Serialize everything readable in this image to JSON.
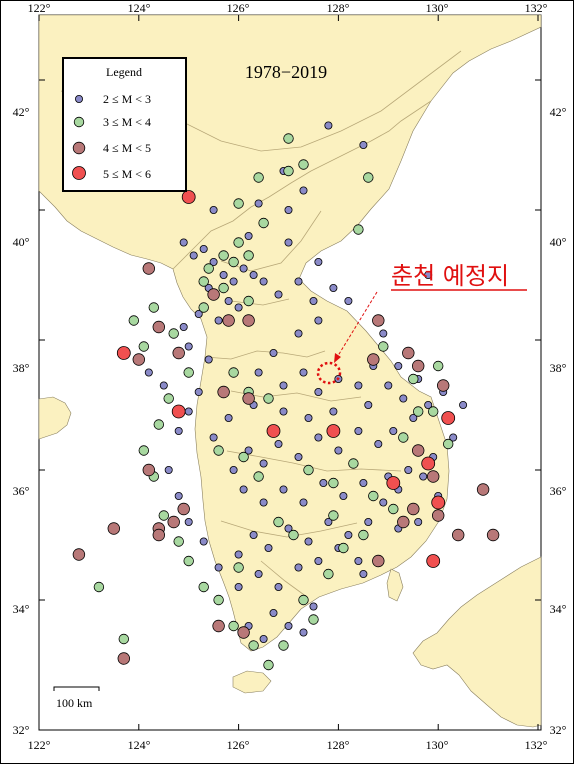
{
  "title": "1978−2019",
  "legend": {
    "title": "Legend",
    "items": [
      {
        "label": "2 ≤ M < 3",
        "color": "#8a8ac8"
      },
      {
        "label": "3 ≤ M < 4",
        "color": "#a8d8a0"
      },
      {
        "label": "4 ≤ M < 5",
        "color": "#b87878"
      },
      {
        "label": "5 ≤ M < 6",
        "color": "#f05050"
      }
    ]
  },
  "annotation": {
    "label": "춘천 예정지",
    "color": "#e01010"
  },
  "scale_bar": {
    "label": "100 km"
  },
  "axes": {
    "lon_ticks": [
      "122°",
      "124°",
      "126°",
      "128°",
      "130°",
      "132°"
    ],
    "lat_ticks": [
      "32°",
      "34°",
      "36°",
      "38°",
      "40°",
      "42°"
    ],
    "lon_range": [
      122,
      132
    ],
    "lat_range": [
      32,
      43
    ]
  },
  "colors": {
    "land": "#fbf1c0",
    "sea": "#ffffff",
    "border": "#b8a878"
  },
  "chart_data": {
    "type": "scatter",
    "title": "1978−2019",
    "xlabel": "",
    "ylabel": "",
    "xlim": [
      122,
      132
    ],
    "ylim": [
      32,
      43
    ],
    "series": [
      {
        "name": "2 ≤ M < 3",
        "color": "#8a8ac8",
        "points": [
          [
            124.9,
            39.5
          ],
          [
            125.1,
            39.3
          ],
          [
            125.3,
            39.4
          ],
          [
            125.5,
            39.2
          ],
          [
            125.7,
            39.0
          ],
          [
            125.9,
            38.9
          ],
          [
            126.1,
            39.1
          ],
          [
            126.3,
            39.0
          ],
          [
            125.4,
            38.8
          ],
          [
            125.8,
            38.6
          ],
          [
            126.0,
            38.5
          ],
          [
            125.6,
            38.3
          ],
          [
            125.2,
            38.4
          ],
          [
            124.9,
            38.2
          ],
          [
            125.0,
            37.9
          ],
          [
            125.4,
            37.7
          ],
          [
            126.5,
            38.9
          ],
          [
            126.8,
            38.7
          ],
          [
            127.2,
            38.9
          ],
          [
            127.5,
            38.6
          ],
          [
            127.9,
            38.8
          ],
          [
            128.2,
            38.6
          ],
          [
            127.6,
            38.3
          ],
          [
            127.2,
            38.1
          ],
          [
            126.7,
            37.8
          ],
          [
            126.4,
            37.5
          ],
          [
            126.9,
            37.3
          ],
          [
            127.3,
            37.5
          ],
          [
            127.6,
            37.2
          ],
          [
            128.0,
            37.4
          ],
          [
            128.4,
            37.3
          ],
          [
            128.7,
            37.6
          ],
          [
            129.0,
            37.3
          ],
          [
            129.3,
            37.1
          ],
          [
            129.6,
            37.4
          ],
          [
            129.8,
            37.0
          ],
          [
            130.1,
            37.2
          ],
          [
            129.5,
            36.8
          ],
          [
            129.1,
            36.6
          ],
          [
            128.8,
            36.4
          ],
          [
            128.4,
            36.6
          ],
          [
            128.0,
            36.3
          ],
          [
            127.6,
            36.5
          ],
          [
            127.2,
            36.2
          ],
          [
            126.8,
            36.4
          ],
          [
            126.5,
            36.1
          ],
          [
            126.2,
            36.3
          ],
          [
            125.9,
            36.0
          ],
          [
            126.1,
            35.7
          ],
          [
            126.5,
            35.5
          ],
          [
            126.9,
            35.7
          ],
          [
            127.3,
            35.5
          ],
          [
            127.7,
            35.8
          ],
          [
            128.1,
            35.6
          ],
          [
            128.5,
            35.8
          ],
          [
            128.9,
            35.5
          ],
          [
            129.2,
            35.7
          ],
          [
            129.5,
            35.4
          ],
          [
            129.7,
            35.9
          ],
          [
            129.9,
            36.2
          ],
          [
            129.4,
            36.0
          ],
          [
            129.0,
            35.9
          ],
          [
            128.6,
            35.2
          ],
          [
            128.2,
            35.0
          ],
          [
            127.8,
            35.2
          ],
          [
            127.4,
            34.9
          ],
          [
            127.0,
            35.1
          ],
          [
            126.6,
            34.8
          ],
          [
            126.3,
            35.0
          ],
          [
            126.0,
            34.7
          ],
          [
            126.4,
            34.4
          ],
          [
            126.8,
            34.2
          ],
          [
            127.2,
            34.5
          ],
          [
            127.6,
            34.6
          ],
          [
            128.0,
            34.8
          ],
          [
            128.4,
            34.6
          ],
          [
            127.0,
            33.6
          ],
          [
            126.5,
            33.4
          ],
          [
            126.2,
            33.6
          ],
          [
            126.7,
            33.8
          ],
          [
            127.3,
            33.5
          ],
          [
            127.5,
            33.9
          ],
          [
            126.0,
            34.2
          ],
          [
            125.6,
            34.5
          ],
          [
            125.3,
            34.9
          ],
          [
            125.0,
            35.2
          ],
          [
            124.8,
            35.6
          ],
          [
            124.6,
            36.0
          ],
          [
            124.8,
            36.6
          ],
          [
            125.0,
            36.9
          ],
          [
            125.2,
            37.2
          ],
          [
            124.5,
            37.3
          ],
          [
            124.2,
            37.5
          ],
          [
            128.5,
            34.4
          ],
          [
            129.2,
            35.1
          ],
          [
            129.6,
            35.2
          ],
          [
            130.0,
            35.6
          ],
          [
            130.3,
            36.5
          ],
          [
            130.5,
            37.0
          ],
          [
            127.0,
            40.0
          ],
          [
            127.3,
            40.3
          ],
          [
            126.9,
            40.6
          ],
          [
            126.4,
            40.1
          ],
          [
            125.5,
            40.0
          ],
          [
            126.2,
            39.6
          ],
          [
            127.0,
            39.5
          ],
          [
            127.6,
            39.2
          ],
          [
            128.5,
            41.0
          ],
          [
            127.8,
            41.3
          ],
          [
            129.8,
            39.0
          ],
          [
            128.9,
            38.1
          ],
          [
            125.8,
            36.8
          ],
          [
            126.9,
            36.9
          ],
          [
            127.9,
            36.9
          ],
          [
            128.6,
            37.0
          ],
          [
            129.2,
            37.6
          ],
          [
            126.3,
            37.0
          ],
          [
            125.5,
            36.5
          ],
          [
            127.4,
            36.8
          ]
        ]
      },
      {
        "name": "3 ≤ M < 4",
        "color": "#a8d8a0",
        "points": [
          [
            126.0,
            39.5
          ],
          [
            125.7,
            39.3
          ],
          [
            125.4,
            39.1
          ],
          [
            126.2,
            39.3
          ],
          [
            125.9,
            39.2
          ],
          [
            125.3,
            38.9
          ],
          [
            126.2,
            38.6
          ],
          [
            125.7,
            38.8
          ],
          [
            127.0,
            41.1
          ],
          [
            127.0,
            40.6
          ],
          [
            127.3,
            40.7
          ],
          [
            126.4,
            40.5
          ],
          [
            128.6,
            40.5
          ],
          [
            128.4,
            39.7
          ],
          [
            128.9,
            37.9
          ],
          [
            125.9,
            37.5
          ],
          [
            126.2,
            37.2
          ],
          [
            126.6,
            37.1
          ],
          [
            125.6,
            36.3
          ],
          [
            126.1,
            36.2
          ],
          [
            127.4,
            36.0
          ],
          [
            127.9,
            35.8
          ],
          [
            128.3,
            36.1
          ],
          [
            129.3,
            36.5
          ],
          [
            129.6,
            36.9
          ],
          [
            130.0,
            37.6
          ],
          [
            129.9,
            36.9
          ],
          [
            129.1,
            35.4
          ],
          [
            128.7,
            35.6
          ],
          [
            128.1,
            34.8
          ],
          [
            127.8,
            34.4
          ],
          [
            127.3,
            34.0
          ],
          [
            126.9,
            33.3
          ],
          [
            126.6,
            33.0
          ],
          [
            126.3,
            33.3
          ],
          [
            125.9,
            33.6
          ],
          [
            125.6,
            34.0
          ],
          [
            125.3,
            34.2
          ],
          [
            125.0,
            34.6
          ],
          [
            124.8,
            34.9
          ],
          [
            124.5,
            35.3
          ],
          [
            124.3,
            35.9
          ],
          [
            124.1,
            36.3
          ],
          [
            124.4,
            36.7
          ],
          [
            124.6,
            37.1
          ],
          [
            124.1,
            37.9
          ],
          [
            123.9,
            38.3
          ],
          [
            124.3,
            38.5
          ],
          [
            125.0,
            37.5
          ],
          [
            126.8,
            35.2
          ],
          [
            127.1,
            35.0
          ],
          [
            128.5,
            35.0
          ],
          [
            127.9,
            35.3
          ],
          [
            129.5,
            37.4
          ],
          [
            130.2,
            36.4
          ],
          [
            126.4,
            35.9
          ],
          [
            123.2,
            34.2
          ],
          [
            123.7,
            33.4
          ],
          [
            126.5,
            39.8
          ],
          [
            126.0,
            40.1
          ],
          [
            125.3,
            38.5
          ],
          [
            124.7,
            38.1
          ],
          [
            127.5,
            33.7
          ],
          [
            126.0,
            34.5
          ]
        ]
      },
      {
        "name": "4 ≤ M < 5",
        "color": "#b87878",
        "points": [
          [
            124.2,
            39.1
          ],
          [
            125.5,
            38.7
          ],
          [
            124.4,
            38.2
          ],
          [
            124.0,
            37.7
          ],
          [
            124.8,
            37.8
          ],
          [
            126.2,
            38.3
          ],
          [
            125.8,
            38.3
          ],
          [
            128.8,
            38.3
          ],
          [
            128.7,
            37.7
          ],
          [
            129.4,
            37.8
          ],
          [
            129.6,
            37.6
          ],
          [
            130.1,
            37.3
          ],
          [
            129.6,
            36.3
          ],
          [
            129.9,
            35.9
          ],
          [
            129.5,
            35.4
          ],
          [
            129.3,
            35.2
          ],
          [
            130.0,
            35.3
          ],
          [
            130.9,
            35.7
          ],
          [
            130.4,
            35.0
          ],
          [
            131.1,
            35.0
          ],
          [
            128.8,
            34.6
          ],
          [
            129.9,
            34.6
          ],
          [
            125.6,
            33.6
          ],
          [
            126.1,
            33.5
          ],
          [
            124.2,
            36.0
          ],
          [
            124.4,
            35.1
          ],
          [
            124.9,
            35.4
          ],
          [
            124.7,
            35.2
          ],
          [
            123.5,
            35.1
          ],
          [
            122.8,
            34.7
          ],
          [
            124.4,
            35.0
          ],
          [
            123.7,
            33.1
          ],
          [
            126.2,
            37.1
          ],
          [
            125.7,
            37.2
          ]
        ]
      },
      {
        "name": "5 ≤ M < 6",
        "color": "#f05050",
        "points": [
          [
            125.0,
            40.2
          ],
          [
            123.7,
            37.8
          ],
          [
            124.8,
            36.9
          ],
          [
            126.7,
            36.6
          ],
          [
            127.9,
            36.6
          ],
          [
            129.8,
            36.1
          ],
          [
            130.2,
            36.8
          ],
          [
            129.1,
            35.8
          ],
          [
            130.0,
            35.5
          ],
          [
            129.9,
            34.6
          ]
        ]
      }
    ]
  }
}
